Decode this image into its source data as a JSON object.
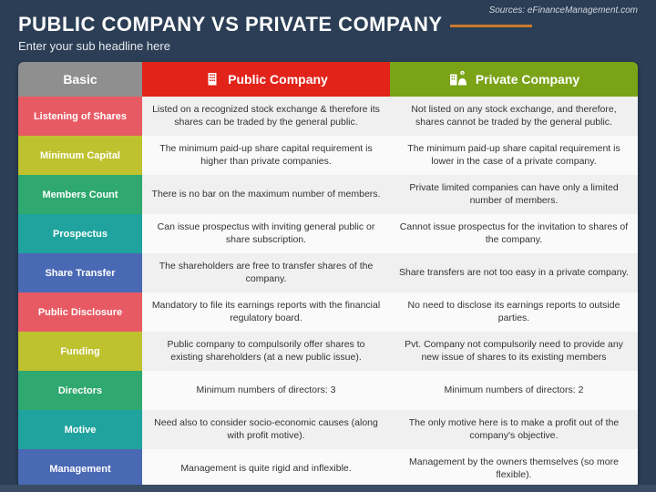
{
  "source_text": "Sources: eFinanceManagement.com",
  "title": "PUBLIC COMPANY VS PRIVATE COMPANY",
  "subtitle": "Enter your sub headline here",
  "background_color": "#2b3e55",
  "columns": {
    "basic": {
      "label": "Basic",
      "bg": "#8f8f8f",
      "width": "20%"
    },
    "public": {
      "label": "Public Company",
      "bg": "#e2231a",
      "width": "40%"
    },
    "private": {
      "label": "Private Company",
      "bg": "#7aa318",
      "width": "40%"
    }
  },
  "row_label_colors": [
    "#e85a63",
    "#bfc22f",
    "#2fa96f",
    "#20a39e",
    "#4a69b4",
    "#e85a63",
    "#bfc22f",
    "#2fa96f",
    "#20a39e",
    "#4a69b4"
  ],
  "cell_bg_even": "#f0f0f0",
  "cell_bg_odd": "#fafafa",
  "rows": [
    {
      "label": "Listening of Shares",
      "public": "Listed on a recognized stock exchange & therefore its shares can be traded by the general public.",
      "private": "Not listed on any stock exchange, and therefore, shares cannot be traded by the general public."
    },
    {
      "label": "Minimum Capital",
      "public": "The minimum paid-up share capital requirement is higher than private companies.",
      "private": "The minimum paid-up share capital requirement is lower in the case of a private company."
    },
    {
      "label": "Members Count",
      "public": "There is no bar on the maximum number of members.",
      "private": "Private limited companies can have only a limited number of members."
    },
    {
      "label": "Prospectus",
      "public": "Can issue prospectus with inviting general public or share subscription.",
      "private": "Cannot issue prospectus for the invitation to shares of the company."
    },
    {
      "label": "Share Transfer",
      "public": "The shareholders are free to transfer shares of the company.",
      "private": "Share transfers are not too easy in a private company."
    },
    {
      "label": "Public Disclosure",
      "public": "Mandatory to file its earnings reports with the financial regulatory board.",
      "private": "No need to disclose its earnings reports to outside parties."
    },
    {
      "label": "Funding",
      "public": "Public company to compulsorily offer shares to existing shareholders (at a new public issue).",
      "private": "Pvt. Company not compulsorily need to provide any new issue of shares to its existing members"
    },
    {
      "label": "Directors",
      "public": "Minimum numbers of directors: 3",
      "private": "Minimum numbers of directors: 2"
    },
    {
      "label": "Motive",
      "public": "Need also to consider socio-economic causes (along with profit motive).",
      "private": "The only motive here is to make a profit out of the company's objective."
    },
    {
      "label": "Management",
      "public": "Management is quite rigid and inflexible.",
      "private": "Management by the owners themselves (so more flexible)."
    }
  ]
}
